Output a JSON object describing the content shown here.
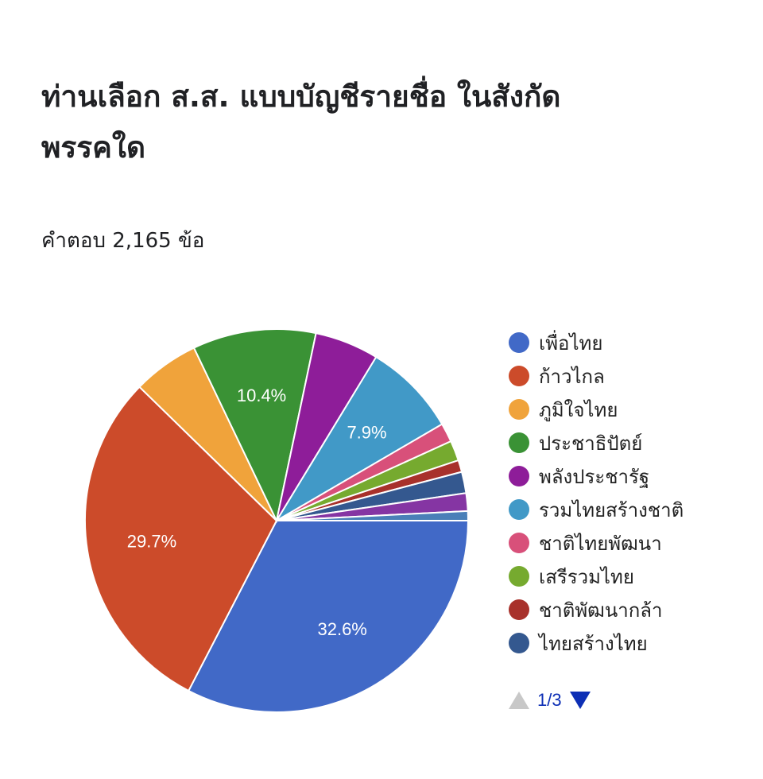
{
  "header": {
    "title": "ท่านเลือก ส.ส. แบบบัญชีรายชื่อ ในสังกัดพรรคใด",
    "responses": "คำตอบ 2,165 ข้อ"
  },
  "chart_data": {
    "type": "pie",
    "title": "ท่านเลือก ส.ส. แบบบัญชีรายชื่อ ในสังกัดพรรคใด",
    "subtitle": "คำตอบ 2,165 ข้อ",
    "legend_position": "right",
    "slices": [
      {
        "label": "เพื่อไทย",
        "value": 32.6,
        "color": "#4169c7",
        "data_label": "32.6%"
      },
      {
        "label": "ก้าวไกล",
        "value": 29.7,
        "color": "#cc4b2a",
        "data_label": "29.7%"
      },
      {
        "label": "ภูมิใจไทย",
        "value": 5.6,
        "color": "#f0a33b",
        "data_label": ""
      },
      {
        "label": "ประชาธิปัตย์",
        "value": 10.4,
        "color": "#3a9235",
        "data_label": "10.4%"
      },
      {
        "label": "พลังประชารัฐ",
        "value": 5.4,
        "color": "#8e1d99",
        "data_label": ""
      },
      {
        "label": "รวมไทยสร้างชาติ",
        "value": 7.9,
        "color": "#4199c7",
        "data_label": "7.9%"
      },
      {
        "label": "ชาติไทยพัฒนา",
        "value": 1.6,
        "color": "#d8507a",
        "data_label": ""
      },
      {
        "label": "เสรีรวมไทย",
        "value": 1.7,
        "color": "#76aa2f",
        "data_label": ""
      },
      {
        "label": "ชาติพัฒนากล้า",
        "value": 1.0,
        "color": "#a8312b",
        "data_label": ""
      },
      {
        "label": "ไทยสร้างไทย",
        "value": 1.8,
        "color": "#34588f",
        "data_label": ""
      },
      {
        "label": "",
        "value": 1.5,
        "color": "#8535a3",
        "data_label": ""
      },
      {
        "label": "",
        "value": 0.8,
        "color": "#4a7fb8",
        "data_label": ""
      }
    ]
  },
  "legend": {
    "items": [
      {
        "label": "เพื่อไทย",
        "color": "#4169c7"
      },
      {
        "label": "ก้าวไกล",
        "color": "#cc4b2a"
      },
      {
        "label": "ภูมิใจไทย",
        "color": "#f0a33b"
      },
      {
        "label": "ประชาธิปัตย์",
        "color": "#3a9235"
      },
      {
        "label": "พลังประชารัฐ",
        "color": "#8e1d99"
      },
      {
        "label": "รวมไทยสร้างชาติ",
        "color": "#4199c7"
      },
      {
        "label": "ชาติไทยพัฒนา",
        "color": "#d8507a"
      },
      {
        "label": "เสรีรวมไทย",
        "color": "#76aa2f"
      },
      {
        "label": "ชาติพัฒนากล้า",
        "color": "#a8312b"
      },
      {
        "label": "ไทยสร้างไทย",
        "color": "#34588f"
      }
    ],
    "pager": {
      "text": "1/3",
      "prev_icon": "triangle-up-icon",
      "next_icon": "triangle-down-icon"
    }
  }
}
